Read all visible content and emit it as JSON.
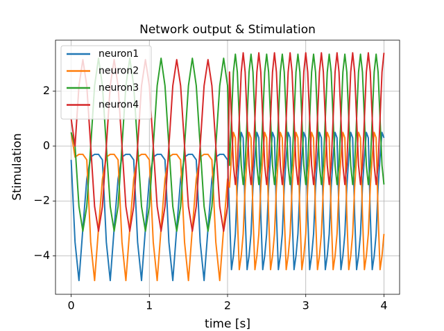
{
  "chart_data": {
    "type": "line",
    "title": "Network output & Stimulation",
    "xlabel": "time [s]",
    "ylabel": "Stimulation",
    "x": [
      0,
      0.05,
      0.1,
      0.15,
      0.2,
      0.25,
      0.3,
      0.35,
      0.4,
      0.45,
      0.5,
      0.55,
      0.6,
      0.65,
      0.7,
      0.75,
      0.8,
      0.85,
      0.9,
      0.95,
      1,
      1.05,
      1.1,
      1.15,
      1.2,
      1.25,
      1.3,
      1.35,
      1.4,
      1.45,
      1.5,
      1.55,
      1.6,
      1.65,
      1.7,
      1.75,
      1.8,
      1.85,
      1.9,
      1.95,
      2,
      2.025,
      2.05,
      2.075,
      2.1,
      2.125,
      2.15,
      2.175,
      2.2,
      2.225,
      2.25,
      2.275,
      2.3,
      2.325,
      2.35,
      2.375,
      2.4,
      2.425,
      2.45,
      2.475,
      2.5,
      2.525,
      2.55,
      2.575,
      2.6,
      2.625,
      2.65,
      2.675,
      2.7,
      2.725,
      2.75,
      2.775,
      2.8,
      2.825,
      2.85,
      2.875,
      2.9,
      2.925,
      2.95,
      2.975,
      3,
      3.025,
      3.05,
      3.075,
      3.1,
      3.125,
      3.15,
      3.175,
      3.2,
      3.225,
      3.25,
      3.275,
      3.3,
      3.325,
      3.35,
      3.375,
      3.4,
      3.425,
      3.45,
      3.475,
      3.5,
      3.525,
      3.55,
      3.575,
      3.6,
      3.625,
      3.65,
      3.675,
      3.7,
      3.725,
      3.75,
      3.775,
      3.8,
      3.825,
      3.85,
      3.875,
      3.9,
      3.925,
      3.95,
      3.975,
      4
    ],
    "series": [
      {
        "name": "neuron1",
        "color": "#1f77b4",
        "values": [
          -0.5,
          -3.5,
          -4.9,
          -3.0,
          -1.2,
          -0.4,
          -0.3,
          -0.3,
          -0.5,
          -3.5,
          -4.9,
          -3.0,
          -1.2,
          -0.4,
          -0.3,
          -0.3,
          -0.5,
          -3.5,
          -4.9,
          -3.0,
          -1.2,
          -0.4,
          -0.3,
          -0.3,
          -0.5,
          -3.5,
          -4.9,
          -3.0,
          -1.2,
          -0.4,
          -0.3,
          -0.3,
          -0.5,
          -3.5,
          -4.9,
          -3.0,
          -1.2,
          -0.4,
          -0.3,
          -0.3,
          -0.5,
          -2.5,
          -4.5,
          -4.0,
          -3.2,
          -1.5,
          -0.4,
          0.5,
          0.3,
          -2.5,
          -4.5,
          -4.0,
          -3.2,
          -1.5,
          -0.4,
          0.5,
          0.3,
          -2.5,
          -4.5,
          -4.0,
          -3.2,
          -1.5,
          -0.4,
          0.5,
          0.3,
          -2.5,
          -4.5,
          -4.0,
          -3.2,
          -1.5,
          -0.4,
          0.5,
          0.3,
          -2.5,
          -4.5,
          -4.0,
          -3.2,
          -1.5,
          -0.4,
          0.5,
          0.3,
          -2.5,
          -4.5,
          -4.0,
          -3.2,
          -1.5,
          -0.4,
          0.5,
          0.3,
          -2.5,
          -4.5,
          -4.0,
          -3.2,
          -1.5,
          -0.4,
          0.5,
          0.3,
          -2.5,
          -4.5,
          -4.0,
          -3.2,
          -1.5,
          -0.4,
          0.5,
          0.3,
          -2.5,
          -4.5,
          -4.0,
          -3.2,
          -1.5,
          -0.4,
          0.5,
          0.3,
          -2.5,
          -4.5,
          -4.0,
          -3.2,
          -1.5,
          -0.4,
          0.5,
          0.3
        ]
      },
      {
        "name": "neuron2",
        "color": "#ff7f0e",
        "values": [
          0.5,
          -0.4,
          -0.3,
          -0.3,
          -0.5,
          -3.5,
          -4.9,
          -3.0,
          -1.2,
          -0.4,
          -0.3,
          -0.3,
          -0.5,
          -3.5,
          -4.9,
          -3.0,
          -1.2,
          -0.4,
          -0.3,
          -0.3,
          -0.5,
          -3.5,
          -4.9,
          -3.0,
          -1.2,
          -0.4,
          -0.3,
          -0.3,
          -0.5,
          -3.5,
          -4.9,
          -3.0,
          -1.2,
          -0.4,
          -0.3,
          -0.3,
          -0.5,
          -3.5,
          -4.9,
          -3.0,
          -1.2,
          -1.5,
          -0.4,
          0.5,
          0.3,
          -2.5,
          -4.5,
          -4.0,
          -3.2,
          -1.5,
          -0.4,
          0.5,
          0.3,
          -2.5,
          -4.5,
          -4.0,
          -3.2,
          -1.5,
          -0.4,
          0.5,
          0.3,
          -2.5,
          -4.5,
          -4.0,
          -3.2,
          -1.5,
          -0.4,
          0.5,
          0.3,
          -2.5,
          -4.5,
          -4.0,
          -3.2,
          -1.5,
          -0.4,
          0.5,
          0.3,
          -2.5,
          -4.5,
          -4.0,
          -3.2,
          -1.5,
          -0.4,
          0.5,
          0.3,
          -2.5,
          -4.5,
          -4.0,
          -3.2,
          -1.5,
          -0.4,
          0.5,
          0.3,
          -2.5,
          -4.5,
          -4.0,
          -3.2,
          -1.5,
          -0.4,
          0.5,
          0.3,
          -2.5,
          -4.5,
          -4.0,
          -3.2,
          -1.5,
          -0.4,
          0.5,
          0.3,
          -2.5,
          -4.5,
          -4.0,
          -3.2,
          -1.5,
          -0.4,
          0.5,
          0.3,
          -2.5,
          -4.5,
          -4.0,
          -3.2
        ]
      },
      {
        "name": "neuron3",
        "color": "#2ca02c",
        "values": [
          0.5,
          0,
          -2.2,
          -3.1,
          -2.2,
          0,
          2.2,
          3.2,
          2.2,
          0,
          -2.2,
          -3.1,
          -2.2,
          0,
          2.2,
          3.2,
          2.2,
          0,
          -2.2,
          -3.1,
          -2.2,
          0,
          2.2,
          3.2,
          2.2,
          0,
          -2.2,
          -3.1,
          -2.2,
          0,
          2.2,
          3.2,
          2.2,
          0,
          -2.2,
          -3.1,
          -2.2,
          0,
          2.2,
          3.2,
          2.2,
          -0.7,
          1.0,
          2.7,
          3.35,
          2.7,
          1.0,
          -0.7,
          -1.4,
          -0.7,
          1.0,
          2.7,
          3.35,
          2.7,
          1.0,
          -0.7,
          -1.4,
          -0.7,
          1.0,
          2.7,
          3.35,
          2.7,
          1.0,
          -0.7,
          -1.4,
          -0.7,
          1.0,
          2.7,
          3.35,
          2.7,
          1.0,
          -0.7,
          -1.4,
          -0.7,
          1.0,
          2.7,
          3.35,
          2.7,
          1.0,
          -0.7,
          -1.4,
          -0.7,
          1.0,
          2.7,
          3.35,
          2.7,
          1.0,
          -0.7,
          -1.4,
          -0.7,
          1.0,
          2.7,
          3.35,
          2.7,
          1.0,
          -0.7,
          -1.4,
          -0.7,
          1.0,
          2.7,
          3.35,
          2.7,
          1.0,
          -0.7,
          -1.4,
          -0.7,
          1.0,
          2.7,
          3.35,
          2.7,
          1.0,
          -0.7,
          -1.4,
          -0.7,
          1.0,
          2.7,
          3.35,
          2.7,
          1.0,
          -0.7,
          -1.4
        ]
      },
      {
        "name": "neuron4",
        "color": "#d62728",
        "values": [
          1.0,
          0,
          2.2,
          3.15,
          2.2,
          0,
          -2.2,
          -3.1,
          -2.2,
          0,
          2.2,
          3.15,
          2.2,
          0,
          -2.2,
          -3.1,
          -2.2,
          0,
          2.2,
          3.15,
          2.2,
          0,
          -2.2,
          -3.1,
          -2.2,
          0,
          2.2,
          3.15,
          2.2,
          0,
          -2.2,
          -3.1,
          -2.2,
          0,
          2.2,
          3.15,
          2.2,
          0,
          -2.2,
          -3.1,
          -2.2,
          2.7,
          1.0,
          -0.7,
          -1.4,
          -0.7,
          1.0,
          2.7,
          3.4,
          2.7,
          1.0,
          -0.7,
          -1.4,
          -0.7,
          1.0,
          2.7,
          3.4,
          2.7,
          1.0,
          -0.7,
          -1.4,
          -0.7,
          1.0,
          2.7,
          3.4,
          2.7,
          1.0,
          -0.7,
          -1.4,
          -0.7,
          1.0,
          2.7,
          3.4,
          2.7,
          1.0,
          -0.7,
          -1.4,
          -0.7,
          1.0,
          2.7,
          3.4,
          2.7,
          1.0,
          -0.7,
          -1.4,
          -0.7,
          1.0,
          2.7,
          3.4,
          2.7,
          1.0,
          -0.7,
          -1.4,
          -0.7,
          1.0,
          2.7,
          3.4,
          2.7,
          1.0,
          -0.7,
          -1.4,
          -0.7,
          1.0,
          2.7,
          3.4,
          2.7,
          1.0,
          -0.7,
          -1.4,
          -0.7,
          1.0,
          2.7,
          3.4,
          2.7,
          1.0,
          -0.7,
          -1.4,
          -0.7,
          1.0,
          2.7,
          3.4
        ]
      }
    ],
    "xlim": [
      -0.2,
      4.2
    ],
    "ylim": [
      -5.4,
      3.86
    ],
    "xticks": [
      0,
      1,
      2,
      3,
      4
    ],
    "yticks": [
      {
        "value": -4,
        "label": "−4"
      },
      {
        "value": -2,
        "label": "−2"
      },
      0,
      2
    ],
    "grid": true,
    "legend": "upper-left"
  }
}
